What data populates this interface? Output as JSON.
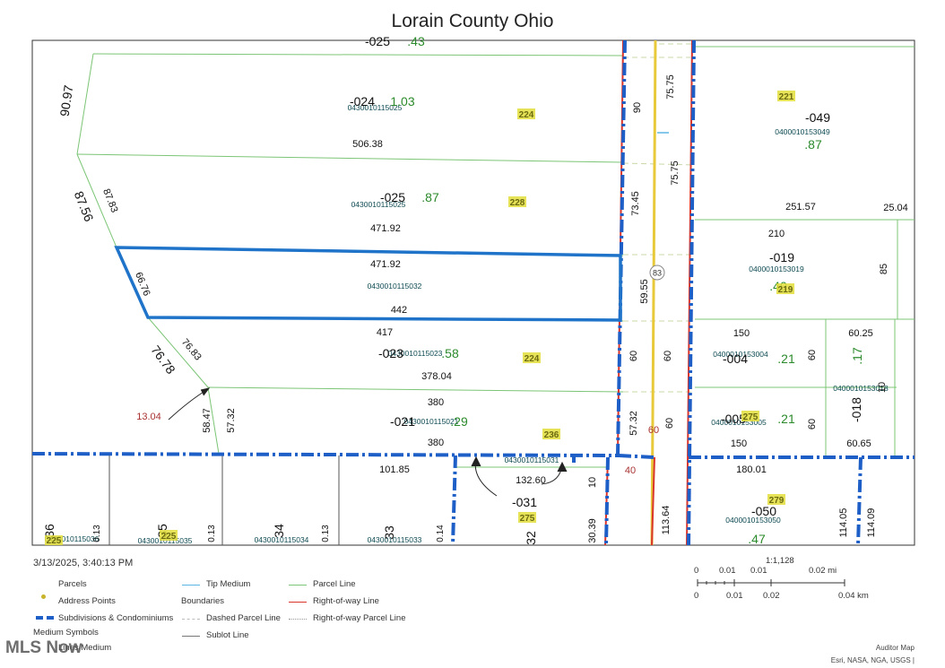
{
  "title": "Lorain County Ohio",
  "timestamp": "3/13/2025, 3:40:13 PM",
  "scale": {
    "ratio": "1:1,128",
    "mi_ticks": [
      "0",
      "0.01",
      "0.01",
      "0.02 mi"
    ],
    "km_ticks": [
      "0",
      "0.01",
      "0.02",
      "0.04 km"
    ]
  },
  "legend": {
    "parcels": "Parcels",
    "address_points": "Address Points",
    "subdivisions": "Subdivisions & Condominiums",
    "medium_symbols": "Medium Symbols",
    "lines_medium": "Lines Medium",
    "tip_medium": "Tip Medium",
    "boundaries": "Boundaries",
    "dashed_parcel_line": "Dashed Parcel Line",
    "sublot_line": "Sublot Line",
    "parcel_line": "Parcel Line",
    "row_line": "Right-of-way Line",
    "row_parcel_line": "Right-of-way Parcel Line"
  },
  "watermark": "MLS Now",
  "credits": {
    "line1": "Auditor Map",
    "line2": "Esri, NASA, NGA, USGS |"
  },
  "colors": {
    "parcel": "#7cc576",
    "subdivision": "#1d5fc7",
    "row": "#d9352b",
    "highlight": "#1f74c9",
    "centerline": "#e8c93a",
    "address_bg": "#e3de3c",
    "acreage": "#2b8a2b"
  },
  "route": "83",
  "labels": {
    "dims": [
      {
        "t": "90.97"
      },
      {
        "t": "87.56"
      },
      {
        "t": "87.83"
      },
      {
        "t": "506.38"
      },
      {
        "t": "471.92"
      },
      {
        "t": "471.92"
      },
      {
        "t": "66.76"
      },
      {
        "t": "442"
      },
      {
        "t": "417"
      },
      {
        "t": "76.83"
      },
      {
        "t": "76.78"
      },
      {
        "t": "378.04"
      },
      {
        "t": "380"
      },
      {
        "t": "380"
      },
      {
        "t": "58.47"
      },
      {
        "t": "57.32"
      },
      {
        "t": "101.85"
      },
      {
        "t": "132.60"
      },
      {
        "t": "90"
      },
      {
        "t": "73.45"
      },
      {
        "t": "59.55"
      },
      {
        "t": "60"
      },
      {
        "t": "57.32"
      },
      {
        "t": "10"
      },
      {
        "t": "30.39"
      },
      {
        "t": "75.75"
      },
      {
        "t": "75.75"
      },
      {
        "t": "60"
      },
      {
        "t": "60"
      },
      {
        "t": "113.64"
      },
      {
        "t": "251.57"
      },
      {
        "t": "25.04"
      },
      {
        "t": "210"
      },
      {
        "t": "85"
      },
      {
        "t": "150"
      },
      {
        "t": "60.25"
      },
      {
        "t": "60"
      },
      {
        "t": "60"
      },
      {
        "t": "150"
      },
      {
        "t": "60.65"
      },
      {
        "t": "180.01"
      },
      {
        "t": "114.05"
      },
      {
        "t": "114.09"
      },
      {
        "t": "0.13"
      },
      {
        "t": "0.13"
      },
      {
        "t": "0.13"
      },
      {
        "t": "0.14"
      },
      {
        "t": "10"
      }
    ],
    "parcel_ids": [
      {
        "t": "-025"
      },
      {
        "t": "-024"
      },
      {
        "t": "-025"
      },
      {
        "t": "-049"
      },
      {
        "t": "-019"
      },
      {
        "t": "-023"
      },
      {
        "t": "-004"
      },
      {
        "t": "-018"
      },
      {
        "t": "-021"
      },
      {
        "t": "-005"
      },
      {
        "t": "-031"
      },
      {
        "t": "-050"
      },
      {
        "t": "36"
      },
      {
        "t": "35"
      },
      {
        "t": "34"
      },
      {
        "t": "33"
      },
      {
        "t": "32"
      }
    ],
    "acreage": [
      {
        "t": ".43"
      },
      {
        "t": "1.03"
      },
      {
        "t": ".87"
      },
      {
        "t": ".87"
      },
      {
        "t": ".40"
      },
      {
        "t": ".58"
      },
      {
        "t": ".21"
      },
      {
        "t": ".17"
      },
      {
        "t": ".29"
      },
      {
        "t": ".21"
      },
      {
        "t": ".47"
      }
    ],
    "pins": [
      {
        "t": "0430010115025"
      },
      {
        "t": "0430010115025"
      },
      {
        "t": "0400010153049"
      },
      {
        "t": "0400010153019"
      },
      {
        "t": "0430010115032"
      },
      {
        "t": "0430010115023"
      },
      {
        "t": "0400010153004"
      },
      {
        "t": "0400010153018"
      },
      {
        "t": "0430010115021"
      },
      {
        "t": "0400010153005"
      },
      {
        "t": "0430010115031"
      },
      {
        "t": "0400010153050"
      },
      {
        "t": "0430010115036"
      },
      {
        "t": "0430010115035"
      },
      {
        "t": "0430010115034"
      },
      {
        "t": "0430010115033"
      }
    ],
    "addresses": [
      {
        "t": "224"
      },
      {
        "t": "228"
      },
      {
        "t": "221"
      },
      {
        "t": "219"
      },
      {
        "t": "224"
      },
      {
        "t": "236"
      },
      {
        "t": "275"
      },
      {
        "t": "279"
      },
      {
        "t": "275"
      },
      {
        "t": "225"
      },
      {
        "t": "225"
      }
    ],
    "red": [
      {
        "t": "13.04"
      },
      {
        "t": "60"
      },
      {
        "t": "40"
      }
    ]
  }
}
